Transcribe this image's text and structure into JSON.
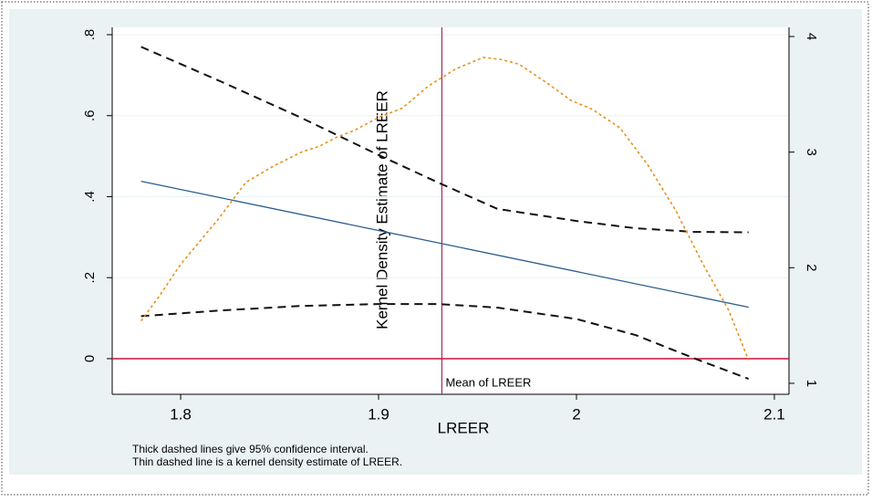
{
  "chart_data": {
    "type": "line",
    "xlim": [
      1.7654,
      2.1074
    ],
    "xticks": [
      1.8,
      1.9,
      2,
      2.1
    ],
    "ylim": [
      -0.088,
      0.818
    ],
    "yticks": [
      0,
      {
        "value": 0.2,
        "label": ".2"
      },
      {
        "value": 0.4,
        "label": ".4"
      },
      {
        "value": 0.6,
        "label": ".6"
      },
      {
        "value": 0.8,
        "label": ".8"
      }
    ],
    "y2lim": [
      0.905,
      4.079
    ],
    "y2ticks": [
      1,
      2,
      3,
      4
    ],
    "grid": true,
    "x_label": "LREER",
    "y2_label": "Kernel Density Estimate of LREER",
    "vline": {
      "value": 1.932,
      "label": "Mean of LREER",
      "color": "#a8285a"
    },
    "hline": {
      "value": 0,
      "color": "#c0143c"
    },
    "notes": [
      "Thick dashed lines give 95% confidence interval.",
      "Thin dashed line is a kernel density estimate of LREER."
    ],
    "series": [
      {
        "style": "solid",
        "color": "#2b5d8c",
        "x": [
          1.78,
          2.087
        ],
        "values": [
          0.438,
          0.127
        ]
      },
      {
        "style": "dashed",
        "color": "#111111",
        "x": [
          1.78,
          1.82,
          1.86,
          1.9,
          1.93,
          1.96,
          2.0,
          2.03,
          2.06,
          2.087
        ],
        "values": [
          0.77,
          0.685,
          0.597,
          0.503,
          0.435,
          0.37,
          0.34,
          0.322,
          0.313,
          0.312
        ]
      },
      {
        "style": "dashed",
        "color": "#111111",
        "x": [
          1.78,
          1.82,
          1.86,
          1.9,
          1.93,
          1.96,
          2.0,
          2.03,
          2.06,
          2.087
        ],
        "values": [
          0.105,
          0.119,
          0.13,
          0.135,
          0.135,
          0.126,
          0.098,
          0.058,
          0.0,
          -0.05
        ]
      },
      {
        "style": "dotted",
        "color": "#e8901c",
        "axis": "y2",
        "x": [
          1.78,
          1.789,
          1.8,
          1.819,
          1.833,
          1.847,
          1.861,
          1.87,
          1.879,
          1.888,
          1.9,
          1.912,
          1.925,
          1.939,
          1.953,
          1.962,
          1.971,
          1.985,
          1.997,
          2.008,
          2.022,
          2.036,
          2.05,
          2.064,
          2.077,
          2.087
        ],
        "values": [
          1.54,
          1.75,
          2.03,
          2.42,
          2.74,
          2.88,
          3.0,
          3.05,
          3.13,
          3.19,
          3.3,
          3.38,
          3.57,
          3.72,
          3.82,
          3.8,
          3.76,
          3.6,
          3.45,
          3.37,
          3.21,
          2.89,
          2.5,
          2.03,
          1.63,
          1.2
        ]
      }
    ]
  }
}
